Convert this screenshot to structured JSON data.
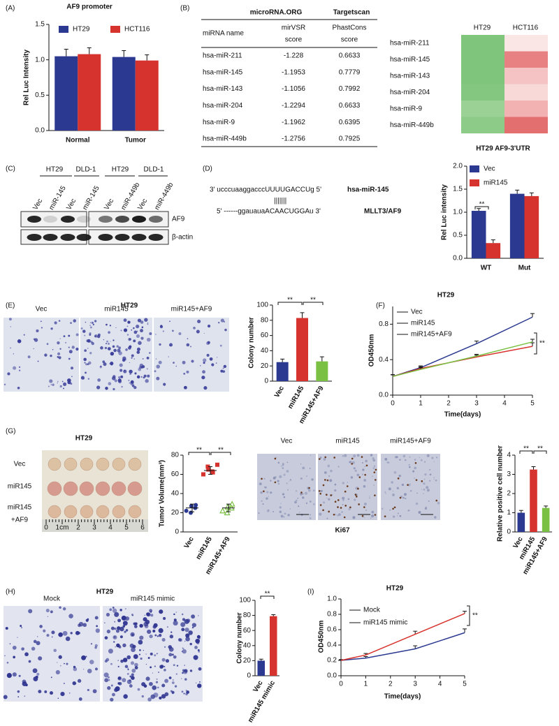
{
  "panel_labels": [
    "(A)",
    "(B)",
    "(C)",
    "(D)",
    "(E)",
    "(F)",
    "(G)",
    "(H)",
    "(I)"
  ],
  "chart_data": [
    {
      "type": "bar",
      "title": "AF9 promoter",
      "ylabel": "Rel Luc Intensity",
      "categories": [
        "Normal",
        "Tumor"
      ],
      "series": [
        {
          "name": "HT29",
          "color": "#2b3990",
          "values": [
            1.05,
            1.04
          ],
          "errors": [
            0.1,
            0.09
          ]
        },
        {
          "name": "HCT116",
          "color": "#d7332e",
          "values": [
            1.08,
            0.99
          ],
          "errors": [
            0.09,
            0.08
          ]
        }
      ],
      "ylim": [
        0,
        1.5
      ],
      "yticks": [
        {
          "value": 0,
          "label": "0.0"
        },
        0.5,
        {
          "value": 1,
          "label": "1.0"
        },
        1.5
      ],
      "annotations": []
    },
    {
      "type": "bar",
      "title": "HT29 AF9-3'UTR",
      "ylabel": "Rel Luc intensity",
      "categories": [
        "WT",
        "Mut"
      ],
      "series": [
        {
          "name": "Vec",
          "color": "#2b3990",
          "values": [
            1.03,
            1.4
          ],
          "errors": [
            0.05,
            0.08
          ]
        },
        {
          "name": "miR145",
          "color": "#d7332e",
          "values": [
            0.33,
            1.35
          ],
          "errors": [
            0.07,
            0.07
          ]
        }
      ],
      "ylim": [
        0,
        2
      ],
      "yticks": [
        {
          "value": 0,
          "label": "0.0"
        },
        0.5,
        {
          "value": 1,
          "label": "1.0"
        },
        1.5,
        {
          "value": 2,
          "label": "2.0"
        }
      ],
      "annotations": [
        "**"
      ]
    },
    {
      "type": "bar",
      "ylabel": "Colony number",
      "categories": [
        "Vec",
        "miR145",
        "miR145+AF9"
      ],
      "values": [
        25,
        83,
        26
      ],
      "errors": [
        4,
        7,
        6
      ],
      "colors": [
        "#2b3990",
        "#d7332e",
        "#7ac143"
      ],
      "ylim": [
        0,
        100
      ],
      "yticks": [
        0,
        20,
        40,
        60,
        80,
        100
      ],
      "annotations": [
        "**",
        "**"
      ]
    },
    {
      "type": "line",
      "title": "HT29",
      "xlabel": "Time(days)",
      "ylabel": "OD450nm",
      "x": [
        0,
        1,
        3,
        5
      ],
      "series": [
        {
          "name": "Vec",
          "color": "#2b3990",
          "values": [
            0.21,
            0.31,
            0.58,
            0.88
          ],
          "errors": [
            0.02,
            0.02,
            0.03,
            0.04
          ]
        },
        {
          "name": "miR145",
          "color": "#d7332e",
          "values": [
            0.21,
            0.3,
            0.43,
            0.55
          ],
          "errors": [
            0.02,
            0.02,
            0.02,
            0.04
          ]
        },
        {
          "name": "miR145+AF9",
          "color": "#7ac143",
          "values": [
            0.21,
            0.29,
            0.44,
            0.6
          ],
          "errors": [
            0.02,
            0.02,
            0.02,
            0.03
          ]
        }
      ],
      "xlim": [
        0,
        5
      ],
      "xticks": [
        0,
        1,
        2,
        3,
        4,
        5
      ],
      "ylim": [
        0,
        1
      ],
      "yticks": [
        {
          "value": 0,
          "label": "0.0"
        },
        0.4,
        0.8
      ],
      "annotations": [
        "**"
      ]
    },
    {
      "type": "scatter",
      "ylabel": "Tumor Volume(mm³)",
      "categories": [
        "Vec",
        "miR145",
        "miR145+AF9"
      ],
      "points": [
        [
          22,
          27,
          20,
          28,
          25
        ],
        [
          60,
          65,
          68,
          62,
          63,
          70
        ],
        [
          22,
          26,
          20,
          29,
          25
        ]
      ],
      "means": [
        25,
        64,
        25
      ],
      "errors": [
        4,
        4,
        4
      ],
      "colors": [
        "#2b3990",
        "#d7332e",
        "#7ac143"
      ],
      "ylim": [
        0,
        80
      ],
      "yticks": [
        0,
        20,
        40,
        60,
        80
      ],
      "annotations": [
        "**",
        "**"
      ]
    },
    {
      "type": "bar",
      "ylabel": "Relative positive cell number",
      "categories": [
        "Vec",
        "miR145",
        "miR145+AF9"
      ],
      "values": [
        1.0,
        3.25,
        1.25
      ],
      "errors": [
        0.12,
        0.15,
        0.1
      ],
      "colors": [
        "#2b3990",
        "#d7332e",
        "#7ac143"
      ],
      "ylim": [
        0,
        4
      ],
      "yticks": [
        0,
        1,
        2,
        3,
        4
      ],
      "annotations": [
        "**",
        "**"
      ]
    },
    {
      "type": "bar",
      "ylabel": "Colony number",
      "categories": [
        "Vec",
        "miR145 mimic"
      ],
      "values": [
        20,
        79
      ],
      "errors": [
        2,
        2
      ],
      "colors": [
        "#2b3990",
        "#d7332e"
      ],
      "ylim": [
        0,
        100
      ],
      "yticks": [
        0,
        20,
        40,
        60,
        80,
        100
      ],
      "annotations": [
        "**"
      ]
    },
    {
      "type": "line",
      "title": "HT29",
      "xlabel": "Time(days)",
      "ylabel": "OD450nm",
      "x": [
        0,
        1,
        3,
        5
      ],
      "series": [
        {
          "name": "Mock",
          "color": "#2b3990",
          "values": [
            0.2,
            0.23,
            0.35,
            0.56
          ],
          "errors": [
            0.01,
            0.02,
            0.04,
            0.05
          ]
        },
        {
          "name": "miR145 mimic",
          "color": "#d7332e",
          "values": [
            0.2,
            0.27,
            0.54,
            0.81
          ],
          "errors": [
            0.01,
            0.02,
            0.04,
            0.03
          ]
        }
      ],
      "xlim": [
        0,
        5
      ],
      "xticks": [
        0,
        1,
        2,
        3,
        4,
        5
      ],
      "ylim": [
        0,
        1
      ],
      "yticks": [
        {
          "value": 0,
          "label": "0.0"
        },
        0.2,
        0.4,
        0.6,
        0.8,
        {
          "value": 1,
          "label": "1.0"
        }
      ],
      "annotations": [
        "**"
      ]
    }
  ],
  "table_b": {
    "sources": [
      "microRNA.ORG",
      "Targetscan"
    ],
    "columns": [
      "miRNA name",
      [
        "mirVSR",
        "score"
      ],
      [
        "PhastCons",
        "score"
      ]
    ],
    "rows": [
      [
        "hsa-miR-211",
        "-1.228",
        "0.6633"
      ],
      [
        "hsa-miR-145",
        "-1.1953",
        "0.7779"
      ],
      [
        "hsa-miR-143",
        "-1.1056",
        "0.7992"
      ],
      [
        "hsa-miR-204",
        "-1.2294",
        "0.6633"
      ],
      [
        "hsa-miR-9",
        "-1.1962",
        "0.6395"
      ],
      [
        "hsa-miR-449b",
        "-1.2756",
        "0.7925"
      ]
    ]
  },
  "heatmap_b": {
    "columns": [
      "HT29",
      "HCT116"
    ],
    "rows": [
      "hsa-miR-211",
      "hsa-miR-145",
      "hsa-miR-143",
      "hsa-miR-204",
      "hsa-miR-9",
      "hsa-miR-449b"
    ],
    "colors": [
      [
        "#7fc57c",
        "#fbe6e6"
      ],
      [
        "#7fc57c",
        "#e88282"
      ],
      [
        "#7fc57c",
        "#f5c3c3"
      ],
      [
        "#83c780",
        "#f9d8d8"
      ],
      [
        "#9bd195",
        "#f2b2b2"
      ],
      [
        "#8ccb88",
        "#e46f6f"
      ]
    ]
  },
  "blot_c": {
    "groups": [
      "HT29",
      "DLD-1",
      "HT29",
      "DLD-1"
    ],
    "lanes": [
      "Vec",
      "miR-145",
      "Vec",
      "miR-145",
      "Vec",
      "miR-449b",
      "Vec",
      "miR-449b"
    ],
    "rows": [
      "AF9",
      "β-actin"
    ]
  },
  "alignment_d": {
    "mirna_seq": "3' ucccuaaggacccUUUUGACCUg 5'",
    "mirna_name": "hsa-miR-145",
    "pairing": "|||||||",
    "target_seq": "5' ------ggauauaACAACUGGAu 3'",
    "target_name": "MLLT3/AF9"
  },
  "images_e": {
    "title": "HT29",
    "labels": [
      "Vec",
      "miR145",
      "miR145+AF9"
    ]
  },
  "images_g": {
    "title": "HT29",
    "rows": [
      "Vec",
      "miR145",
      [
        "miR145",
        "+AF9"
      ]
    ],
    "ruler": [
      "0",
      "1cm",
      "2",
      "3",
      "4",
      "5",
      "6"
    ]
  },
  "ki67_g": {
    "labels": [
      "Vec",
      "miR145",
      "miR145+AF9"
    ],
    "title": "Ki67"
  },
  "images_h": {
    "title": "HT29",
    "labels": [
      "Mock",
      "miR145 mimic"
    ]
  }
}
